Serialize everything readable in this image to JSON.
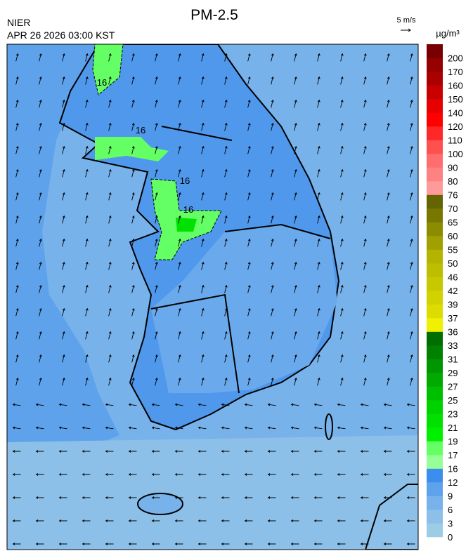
{
  "header": {
    "title": "PM-2.5",
    "agency": "NIER",
    "datetime": "APR 26 2026 03:00 KST",
    "wind_scale": "5 m/s"
  },
  "map": {
    "contour_labels": [
      "16",
      "16",
      "16",
      "16"
    ]
  },
  "colorbar": {
    "unit": "µg/m³",
    "levels": [
      0,
      3,
      6,
      9,
      12,
      16,
      17,
      19,
      21,
      23,
      25,
      27,
      29,
      31,
      33,
      36,
      37,
      39,
      42,
      46,
      50,
      55,
      60,
      65,
      70,
      76,
      80,
      90,
      100,
      110,
      120,
      140,
      150,
      160,
      170,
      200
    ],
    "colors": [
      "#9ccce6",
      "#8cc0e8",
      "#78b2ea",
      "#5ea2ec",
      "#3c8eee",
      "#96ff96",
      "#64ff64",
      "#00f000",
      "#00e100",
      "#00d200",
      "#00be00",
      "#00aa00",
      "#009600",
      "#008200",
      "#006e00",
      "#f0f000",
      "#dcdc00",
      "#d2d200",
      "#c8c800",
      "#bebe00",
      "#b4b400",
      "#a0a000",
      "#8c8c00",
      "#787800",
      "#646400",
      "#ff9a9a",
      "#ff8282",
      "#ff6e6e",
      "#ff5050",
      "#ff2828",
      "#ff0000",
      "#e60000",
      "#c80000",
      "#aa0000",
      "#960000",
      "#780000"
    ]
  }
}
